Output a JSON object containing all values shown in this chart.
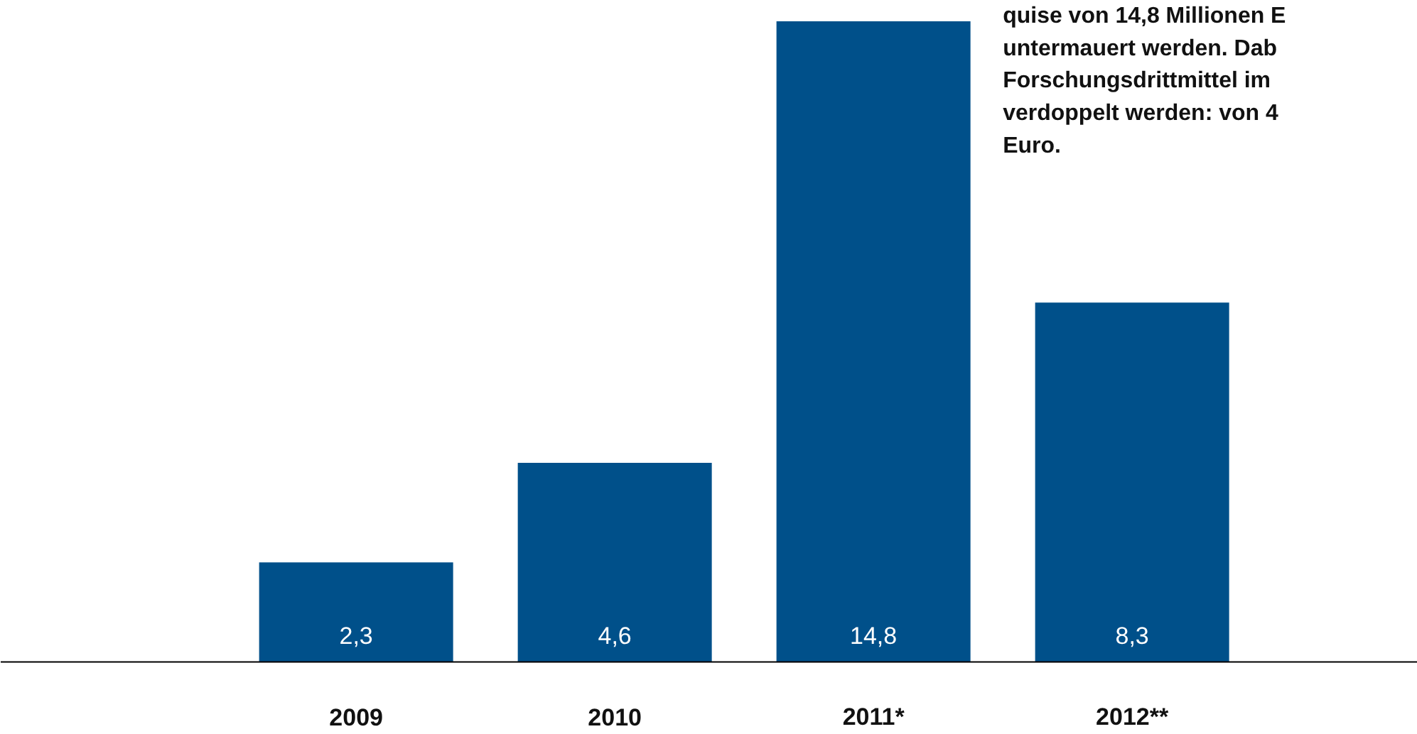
{
  "chart_data": {
    "type": "bar",
    "categories": [
      "2009",
      "2010",
      "2011*",
      "2012**"
    ],
    "values": [
      2.3,
      4.6,
      14.8,
      8.3
    ],
    "value_labels": [
      "2,3",
      "4,6",
      "14,8",
      "8,3"
    ],
    "color": "#00508a",
    "annotations": [
      "quise von 14,8 Millionen E\nuntermauert werden. Dab\nForschungsdrittmittel im\nverdoppelt werden: von 4\nEuro."
    ],
    "grid": false
  }
}
